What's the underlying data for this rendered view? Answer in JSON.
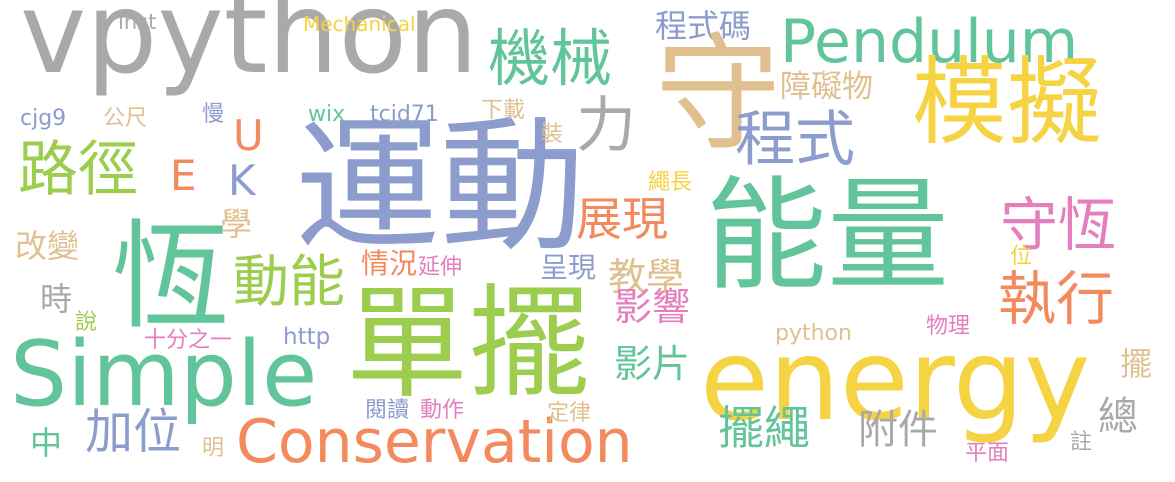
{
  "palette": {
    "gray": "#a9a9a9",
    "yellow": "#f5d342",
    "green": "#62c49a",
    "lime": "#9ccd4e",
    "blue": "#8c9ccc",
    "tan": "#e0c08f",
    "orange": "#f28a5e",
    "pink": "#e47ebd"
  },
  "words": [
    {
      "text": "vpython",
      "color": "gray"
    },
    {
      "text": "Mechanical",
      "color": "yellow"
    },
    {
      "text": "inst",
      "color": "gray"
    },
    {
      "text": "機械",
      "color": "green"
    },
    {
      "text": "程式碼",
      "color": "blue"
    },
    {
      "text": "Pendulum",
      "color": "green"
    },
    {
      "text": "守",
      "color": "tan"
    },
    {
      "text": "模擬",
      "color": "yellow"
    },
    {
      "text": "障礙物",
      "color": "tan"
    },
    {
      "text": "程式",
      "color": "blue"
    },
    {
      "text": "力",
      "color": "gray"
    },
    {
      "text": "運動",
      "color": "blue"
    },
    {
      "text": "能量",
      "color": "green"
    },
    {
      "text": "路徑",
      "color": "lime"
    },
    {
      "text": "E",
      "color": "orange"
    },
    {
      "text": "U",
      "color": "orange"
    },
    {
      "text": "K",
      "color": "blue"
    },
    {
      "text": "cjg9",
      "color": "blue"
    },
    {
      "text": "公尺",
      "color": "tan"
    },
    {
      "text": "慢",
      "color": "blue"
    },
    {
      "text": "wix",
      "color": "green"
    },
    {
      "text": "tcjd71",
      "color": "blue"
    },
    {
      "text": "下載",
      "color": "tan"
    },
    {
      "text": "裝",
      "color": "tan"
    },
    {
      "text": "繩長",
      "color": "yellow"
    },
    {
      "text": "恆",
      "color": "green"
    },
    {
      "text": "改變",
      "color": "tan"
    },
    {
      "text": "學",
      "color": "tan"
    },
    {
      "text": "展現",
      "color": "orange"
    },
    {
      "text": "守恆",
      "color": "pink"
    },
    {
      "text": "執行",
      "color": "orange"
    },
    {
      "text": "動能",
      "color": "lime"
    },
    {
      "text": "情況",
      "color": "orange"
    },
    {
      "text": "延伸",
      "color": "pink"
    },
    {
      "text": "呈現",
      "color": "blue"
    },
    {
      "text": "教學",
      "color": "tan"
    },
    {
      "text": "位",
      "color": "yellow"
    },
    {
      "text": "時",
      "color": "gray"
    },
    {
      "text": "Simple",
      "color": "green"
    },
    {
      "text": "單擺",
      "color": "lime"
    },
    {
      "text": "影響",
      "color": "pink"
    },
    {
      "text": "energy",
      "color": "yellow"
    },
    {
      "text": "說",
      "color": "lime"
    },
    {
      "text": "十分之一",
      "color": "pink"
    },
    {
      "text": "http",
      "color": "blue"
    },
    {
      "text": "python",
      "color": "tan"
    },
    {
      "text": "物理",
      "color": "pink"
    },
    {
      "text": "擺",
      "color": "tan"
    },
    {
      "text": "影片",
      "color": "green"
    },
    {
      "text": "Conservation",
      "color": "orange"
    },
    {
      "text": "閱讀",
      "color": "blue"
    },
    {
      "text": "動作",
      "color": "pink"
    },
    {
      "text": "定律",
      "color": "tan"
    },
    {
      "text": "中",
      "color": "green"
    },
    {
      "text": "加位",
      "color": "blue"
    },
    {
      "text": "擺繩",
      "color": "green"
    },
    {
      "text": "附件",
      "color": "gray"
    },
    {
      "text": "總",
      "color": "gray"
    },
    {
      "text": "註",
      "color": "gray"
    },
    {
      "text": "明",
      "color": "tan"
    },
    {
      "text": "平面",
      "color": "pink"
    }
  ]
}
